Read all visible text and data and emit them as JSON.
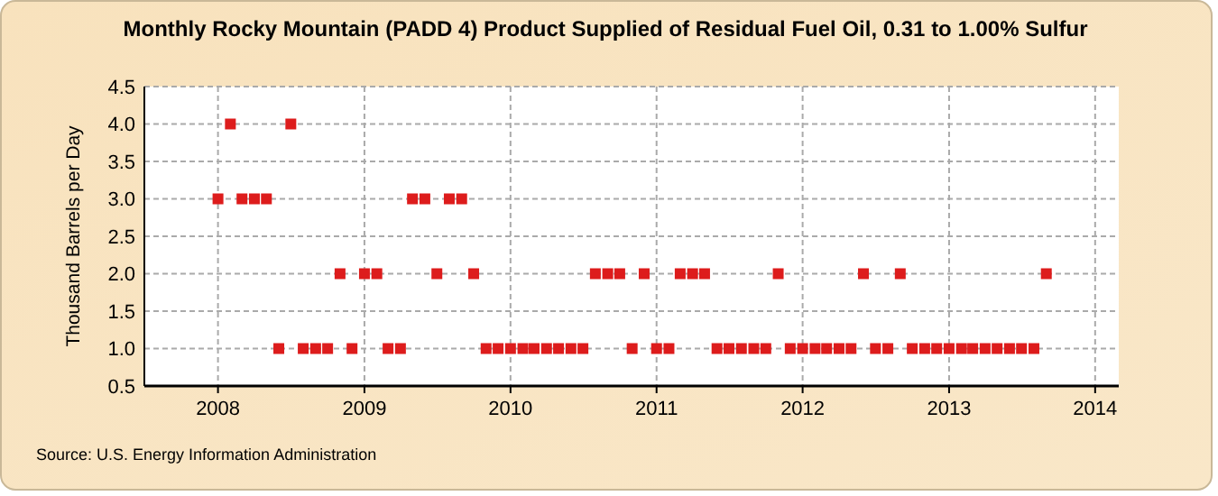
{
  "chart_data": {
    "type": "scatter",
    "title": "Monthly Rocky Mountain (PADD 4) Product Supplied of Residual Fuel Oil, 0.31 to 1.00% Sulfur",
    "ylabel": "Thousand Barrels per Day",
    "annotations": [
      "Source: U.S. Energy Information Administration"
    ],
    "x": [
      "2008-01",
      "2008-02",
      "2008-03",
      "2008-04",
      "2008-05",
      "2008-06",
      "2008-07",
      "2008-08",
      "2008-09",
      "2008-10",
      "2008-11",
      "2008-12",
      "2009-01",
      "2009-02",
      "2009-03",
      "2009-04",
      "2009-05",
      "2009-06",
      "2009-07",
      "2009-08",
      "2009-09",
      "2009-10",
      "2009-11",
      "2009-12",
      "2010-01",
      "2010-02",
      "2010-03",
      "2010-04",
      "2010-05",
      "2010-06",
      "2010-07",
      "2010-08",
      "2010-09",
      "2010-10",
      "2010-11",
      "2010-12",
      "2011-01",
      "2011-02",
      "2011-03",
      "2011-04",
      "2011-05",
      "2011-06",
      "2011-07",
      "2011-08",
      "2011-09",
      "2011-10",
      "2011-11",
      "2011-12",
      "2012-01",
      "2012-02",
      "2012-03",
      "2012-04",
      "2012-05",
      "2012-06",
      "2012-07",
      "2012-08",
      "2012-09",
      "2012-10",
      "2012-11",
      "2012-12",
      "2013-01",
      "2013-02",
      "2013-03",
      "2013-04",
      "2013-05",
      "2013-06",
      "2013-07",
      "2013-08",
      "2013-09"
    ],
    "series": [
      {
        "color": "#dd1c1c",
        "values": [
          3,
          4,
          3,
          3,
          3,
          1,
          4,
          1,
          1,
          1,
          2,
          1,
          2,
          2,
          1,
          1,
          3,
          3,
          2,
          3,
          3,
          2,
          1,
          1,
          1,
          1,
          1,
          1,
          1,
          1,
          1,
          2,
          2,
          2,
          1,
          2,
          1,
          1,
          2,
          2,
          2,
          1,
          1,
          1,
          1,
          1,
          2,
          1,
          1,
          1,
          1,
          1,
          1,
          2,
          1,
          1,
          2,
          1,
          1,
          1,
          1,
          1,
          1,
          1,
          1,
          1,
          1,
          1,
          2
        ]
      }
    ],
    "xlim": [
      "2007-07",
      "2014-03"
    ],
    "xticks": [
      {
        "value": "2008",
        "label": "2008"
      },
      {
        "value": "2009",
        "label": "2009"
      },
      {
        "value": "2010",
        "label": "2010"
      },
      {
        "value": "2011",
        "label": "2011"
      },
      {
        "value": "2012",
        "label": "2012"
      },
      {
        "value": "2013",
        "label": "2013"
      },
      {
        "value": "2014",
        "label": "2014"
      }
    ],
    "ylim": [
      0.5,
      4.5
    ],
    "yticks": [
      {
        "value": 0.5,
        "label": "0.5"
      },
      {
        "value": 1,
        "label": "1.0"
      },
      {
        "value": 1.5,
        "label": "1.5"
      },
      {
        "value": 2,
        "label": "2.0"
      },
      {
        "value": 2.5,
        "label": "2.5"
      },
      {
        "value": 3,
        "label": "3.0"
      },
      {
        "value": 3.5,
        "label": "3.5"
      },
      {
        "value": 4,
        "label": "4.0"
      },
      {
        "value": 4.5,
        "label": "4.5"
      }
    ],
    "grid": true,
    "marker": "square"
  }
}
